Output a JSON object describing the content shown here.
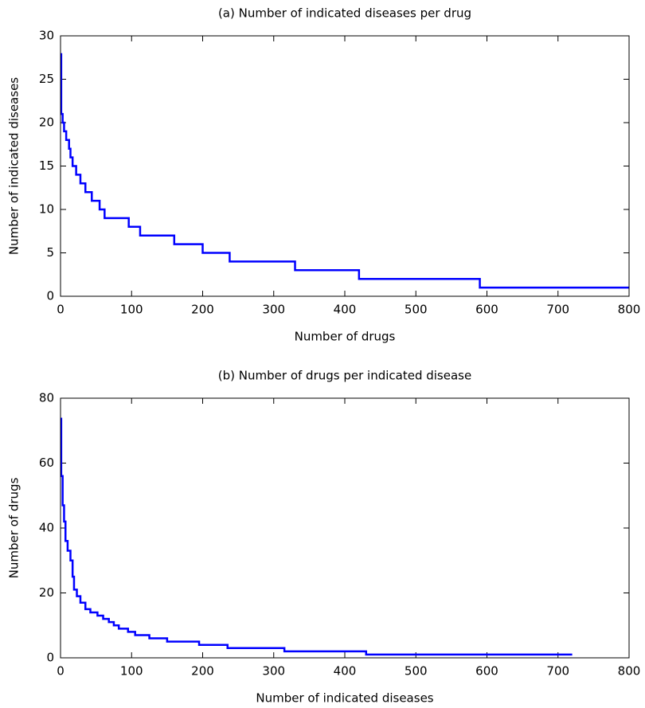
{
  "chart_data": [
    {
      "type": "line",
      "title": "(a) Number of indicated diseases per drug",
      "x_label": "Number of drugs",
      "y_label": "Number of indicated diseases",
      "xlim": [
        0,
        800
      ],
      "ylim": [
        0,
        30
      ],
      "xticks": [
        0,
        100,
        200,
        300,
        400,
        500,
        600,
        700,
        800
      ],
      "yticks": [
        0,
        5,
        10,
        15,
        20,
        25,
        30
      ],
      "grid": false,
      "series": [
        {
          "color": "#0000ff",
          "x": [
            1,
            1,
            3,
            3,
            5,
            5,
            8,
            8,
            12,
            12,
            14,
            14,
            17,
            17,
            22,
            22,
            28,
            28,
            35,
            35,
            44,
            44,
            55,
            55,
            62,
            62,
            96,
            96,
            112,
            112,
            160,
            160,
            200,
            200,
            238,
            238,
            330,
            330,
            420,
            420,
            590,
            590,
            800
          ],
          "values": [
            28,
            21,
            21,
            20,
            20,
            19,
            19,
            18,
            18,
            17,
            17,
            16,
            16,
            15,
            15,
            14,
            14,
            13,
            13,
            12,
            12,
            11,
            11,
            10,
            10,
            9,
            9,
            8,
            8,
            7,
            7,
            6,
            6,
            5,
            5,
            4,
            4,
            3,
            3,
            2,
            2,
            1,
            1
          ]
        }
      ]
    },
    {
      "type": "line",
      "title": "(b) Number of drugs per indicated disease",
      "x_label": "Number of indicated diseases",
      "y_label": "Number of drugs",
      "xlim": [
        0,
        800
      ],
      "ylim": [
        0,
        80
      ],
      "xticks": [
        0,
        100,
        200,
        300,
        400,
        500,
        600,
        700,
        800
      ],
      "yticks": [
        0,
        20,
        40,
        60,
        80
      ],
      "grid": false,
      "series": [
        {
          "color": "#0000ff",
          "x": [
            1,
            1,
            3,
            3,
            5,
            5,
            7,
            7,
            10,
            10,
            14,
            14,
            17,
            17,
            19,
            19,
            23,
            23,
            28,
            28,
            35,
            35,
            42,
            42,
            52,
            52,
            60,
            60,
            68,
            68,
            75,
            75,
            82,
            82,
            95,
            95,
            105,
            105,
            125,
            125,
            150,
            150,
            195,
            195,
            235,
            235,
            315,
            315,
            430,
            430,
            720
          ],
          "values": [
            74,
            56,
            56,
            47,
            47,
            42,
            42,
            36,
            36,
            33,
            33,
            30,
            30,
            25,
            25,
            21,
            21,
            19,
            19,
            17,
            17,
            15,
            15,
            14,
            14,
            13,
            13,
            12,
            12,
            11,
            11,
            10,
            10,
            9,
            9,
            8,
            8,
            7,
            7,
            6,
            6,
            5,
            5,
            4,
            4,
            3,
            3,
            2,
            2,
            1,
            1
          ]
        }
      ]
    }
  ]
}
